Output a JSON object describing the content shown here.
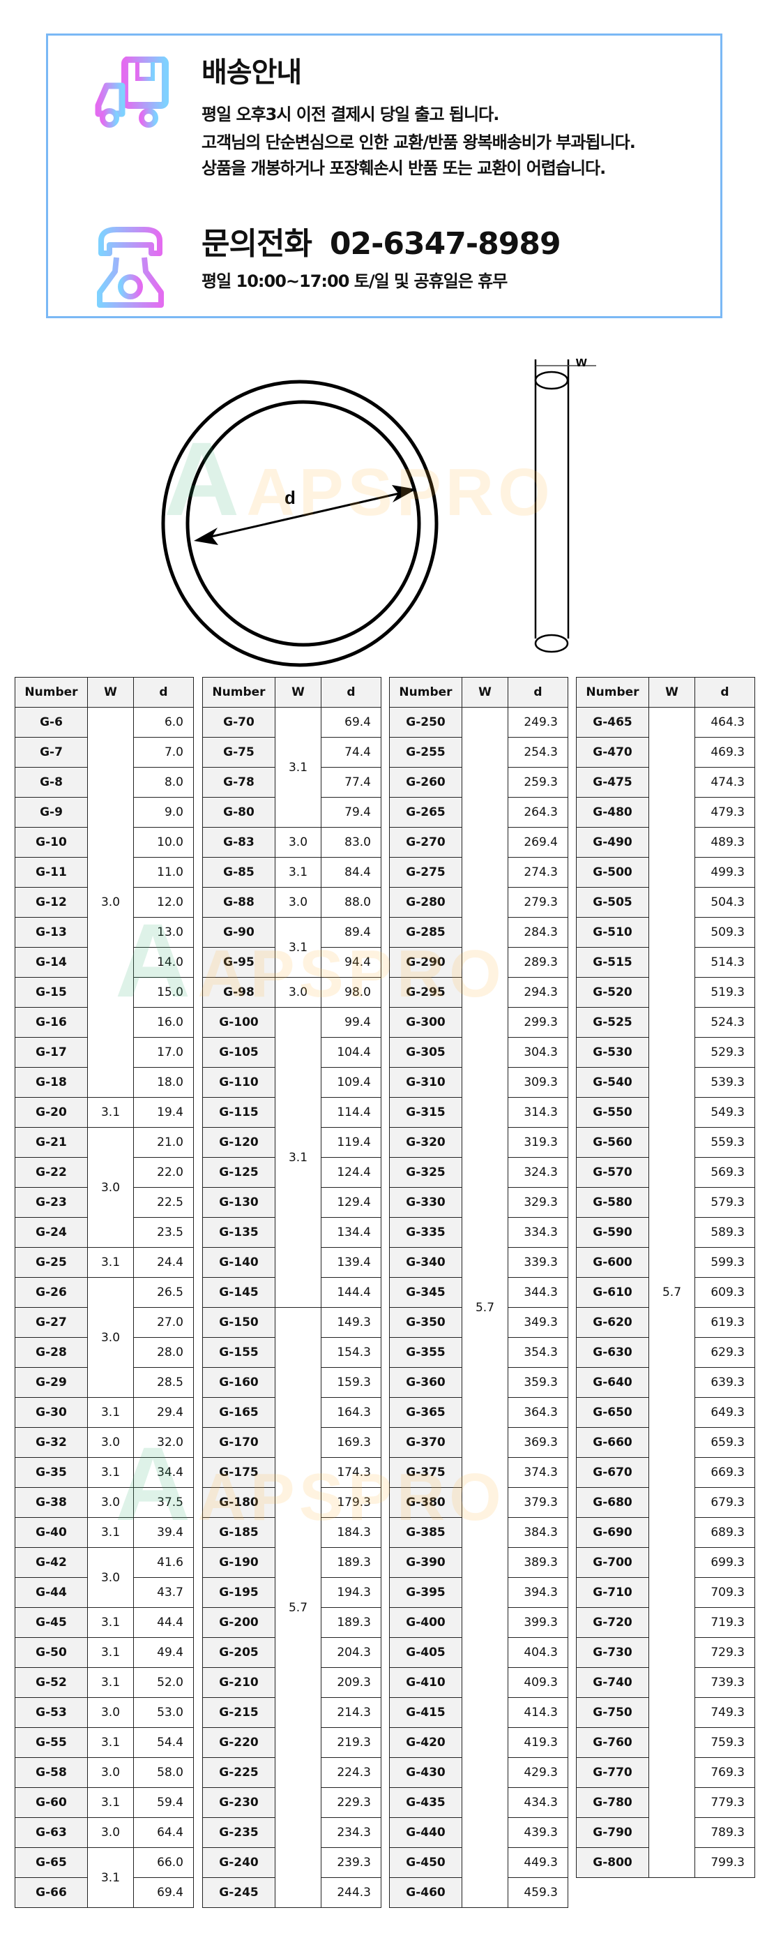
{
  "shipping": {
    "title": "배송안내",
    "lines": [
      "평일 오후3시 이전 결제시 당일 출고 됩니다.",
      "고객님의 단순변심으로 인한 교환/반품 왕복배송비가 부과됩니다.",
      "상품을 개봉하거나 포장훼손시 반품 또는 교환이 어렵습니다."
    ],
    "icon": "delivery-truck-icon"
  },
  "contact": {
    "label": "문의전화",
    "phone": "02-6347-8989",
    "hours": "평일 10:00~17:00 토/일 및 공휴일은 휴무",
    "icon": "telephone-icon"
  },
  "diagram": {
    "d_label": "d",
    "w_label": "w"
  },
  "watermark": "APSPRO",
  "colors": {
    "border": "#7ab8f5",
    "header_bg": "#f2f2f2",
    "gradient_start": "#e36cf0",
    "gradient_end": "#7fd1ff"
  },
  "table_headers": [
    "Number",
    "W",
    "d"
  ],
  "tables": [
    {
      "rows": [
        [
          "G-6",
          "6.0"
        ],
        [
          "G-7",
          "7.0"
        ],
        [
          "G-8",
          "8.0"
        ],
        [
          "G-9",
          "9.0"
        ],
        [
          "G-10",
          "10.0"
        ],
        [
          "G-11",
          "11.0"
        ],
        [
          "G-12",
          "12.0"
        ],
        [
          "G-13",
          "13.0"
        ],
        [
          "G-14",
          "14.0"
        ],
        [
          "G-15",
          "15.0"
        ],
        [
          "G-16",
          "16.0"
        ],
        [
          "G-17",
          "17.0"
        ],
        [
          "G-18",
          "18.0"
        ],
        [
          "G-20",
          "19.4"
        ],
        [
          "G-21",
          "21.0"
        ],
        [
          "G-22",
          "22.0"
        ],
        [
          "G-23",
          "22.5"
        ],
        [
          "G-24",
          "23.5"
        ],
        [
          "G-25",
          "24.4"
        ],
        [
          "G-26",
          "26.5"
        ],
        [
          "G-27",
          "27.0"
        ],
        [
          "G-28",
          "28.0"
        ],
        [
          "G-29",
          "28.5"
        ],
        [
          "G-30",
          "29.4"
        ],
        [
          "G-32",
          "32.0"
        ],
        [
          "G-35",
          "34.4"
        ],
        [
          "G-38",
          "37.5"
        ],
        [
          "G-40",
          "39.4"
        ],
        [
          "G-42",
          "41.6"
        ],
        [
          "G-44",
          "43.7"
        ],
        [
          "G-45",
          "44.4"
        ],
        [
          "G-50",
          "49.4"
        ],
        [
          "G-52",
          "52.0"
        ],
        [
          "G-53",
          "53.0"
        ],
        [
          "G-55",
          "54.4"
        ],
        [
          "G-58",
          "58.0"
        ],
        [
          "G-60",
          "59.4"
        ],
        [
          "G-63",
          "64.4"
        ],
        [
          "G-65",
          "66.0"
        ],
        [
          "G-66",
          "69.4"
        ]
      ],
      "w_groups": [
        [
          "3.0",
          13
        ],
        [
          "3.1",
          1
        ],
        [
          "3.0",
          4
        ],
        [
          "3.1",
          1
        ],
        [
          "3.0",
          4
        ],
        [
          "3.1",
          1
        ],
        [
          "3.0",
          1
        ],
        [
          "3.1",
          1
        ],
        [
          "3.0",
          1
        ],
        [
          "3.1",
          1
        ],
        [
          "3.0",
          2
        ],
        [
          "3.1",
          1
        ],
        [
          "3.1",
          1
        ],
        [
          "3.1",
          1
        ],
        [
          "3.0",
          1
        ],
        [
          "3.1",
          1
        ],
        [
          "3.0",
          1
        ],
        [
          "3.1",
          1
        ],
        [
          "3.0",
          1
        ],
        [
          "3.1",
          2
        ]
      ]
    },
    {
      "rows": [
        [
          "G-70",
          "69.4"
        ],
        [
          "G-75",
          "74.4"
        ],
        [
          "G-78",
          "77.4"
        ],
        [
          "G-80",
          "79.4"
        ],
        [
          "G-83",
          "83.0"
        ],
        [
          "G-85",
          "84.4"
        ],
        [
          "G-88",
          "88.0"
        ],
        [
          "G-90",
          "89.4"
        ],
        [
          "G-95",
          "94.4"
        ],
        [
          "G-98",
          "98.0"
        ],
        [
          "G-100",
          "99.4"
        ],
        [
          "G-105",
          "104.4"
        ],
        [
          "G-110",
          "109.4"
        ],
        [
          "G-115",
          "114.4"
        ],
        [
          "G-120",
          "119.4"
        ],
        [
          "G-125",
          "124.4"
        ],
        [
          "G-130",
          "129.4"
        ],
        [
          "G-135",
          "134.4"
        ],
        [
          "G-140",
          "139.4"
        ],
        [
          "G-145",
          "144.4"
        ],
        [
          "G-150",
          "149.3"
        ],
        [
          "G-155",
          "154.3"
        ],
        [
          "G-160",
          "159.3"
        ],
        [
          "G-165",
          "164.3"
        ],
        [
          "G-170",
          "169.3"
        ],
        [
          "G-175",
          "174.3"
        ],
        [
          "G-180",
          "179.3"
        ],
        [
          "G-185",
          "184.3"
        ],
        [
          "G-190",
          "189.3"
        ],
        [
          "G-195",
          "194.3"
        ],
        [
          "G-200",
          "189.3"
        ],
        [
          "G-205",
          "204.3"
        ],
        [
          "G-210",
          "209.3"
        ],
        [
          "G-215",
          "214.3"
        ],
        [
          "G-220",
          "219.3"
        ],
        [
          "G-225",
          "224.3"
        ],
        [
          "G-230",
          "229.3"
        ],
        [
          "G-235",
          "234.3"
        ],
        [
          "G-240",
          "239.3"
        ],
        [
          "G-245",
          "244.3"
        ]
      ],
      "w_groups": [
        [
          "3.1",
          4
        ],
        [
          "3.0",
          1
        ],
        [
          "3.1",
          1
        ],
        [
          "3.0",
          1
        ],
        [
          "3.1",
          2
        ],
        [
          "3.0",
          1
        ],
        [
          "3.1",
          10
        ],
        [
          "5.7",
          20
        ]
      ]
    },
    {
      "rows": [
        [
          "G-250",
          "249.3"
        ],
        [
          "G-255",
          "254.3"
        ],
        [
          "G-260",
          "259.3"
        ],
        [
          "G-265",
          "264.3"
        ],
        [
          "G-270",
          "269.4"
        ],
        [
          "G-275",
          "274.3"
        ],
        [
          "G-280",
          "279.3"
        ],
        [
          "G-285",
          "284.3"
        ],
        [
          "G-290",
          "289.3"
        ],
        [
          "G-295",
          "294.3"
        ],
        [
          "G-300",
          "299.3"
        ],
        [
          "G-305",
          "304.3"
        ],
        [
          "G-310",
          "309.3"
        ],
        [
          "G-315",
          "314.3"
        ],
        [
          "G-320",
          "319.3"
        ],
        [
          "G-325",
          "324.3"
        ],
        [
          "G-330",
          "329.3"
        ],
        [
          "G-335",
          "334.3"
        ],
        [
          "G-340",
          "339.3"
        ],
        [
          "G-345",
          "344.3"
        ],
        [
          "G-350",
          "349.3"
        ],
        [
          "G-355",
          "354.3"
        ],
        [
          "G-360",
          "359.3"
        ],
        [
          "G-365",
          "364.3"
        ],
        [
          "G-370",
          "369.3"
        ],
        [
          "G-375",
          "374.3"
        ],
        [
          "G-380",
          "379.3"
        ],
        [
          "G-385",
          "384.3"
        ],
        [
          "G-390",
          "389.3"
        ],
        [
          "G-395",
          "394.3"
        ],
        [
          "G-400",
          "399.3"
        ],
        [
          "G-405",
          "404.3"
        ],
        [
          "G-410",
          "409.3"
        ],
        [
          "G-415",
          "414.3"
        ],
        [
          "G-420",
          "419.3"
        ],
        [
          "G-430",
          "429.3"
        ],
        [
          "G-435",
          "434.3"
        ],
        [
          "G-440",
          "439.3"
        ],
        [
          "G-450",
          "449.3"
        ],
        [
          "G-460",
          "459.3"
        ]
      ],
      "w_groups": [
        [
          "5.7",
          40
        ]
      ]
    },
    {
      "rows": [
        [
          "G-465",
          "464.3"
        ],
        [
          "G-470",
          "469.3"
        ],
        [
          "G-475",
          "474.3"
        ],
        [
          "G-480",
          "479.3"
        ],
        [
          "G-490",
          "489.3"
        ],
        [
          "G-500",
          "499.3"
        ],
        [
          "G-505",
          "504.3"
        ],
        [
          "G-510",
          "509.3"
        ],
        [
          "G-515",
          "514.3"
        ],
        [
          "G-520",
          "519.3"
        ],
        [
          "G-525",
          "524.3"
        ],
        [
          "G-530",
          "529.3"
        ],
        [
          "G-540",
          "539.3"
        ],
        [
          "G-550",
          "549.3"
        ],
        [
          "G-560",
          "559.3"
        ],
        [
          "G-570",
          "569.3"
        ],
        [
          "G-580",
          "579.3"
        ],
        [
          "G-590",
          "589.3"
        ],
        [
          "G-600",
          "599.3"
        ],
        [
          "G-610",
          "609.3"
        ],
        [
          "G-620",
          "619.3"
        ],
        [
          "G-630",
          "629.3"
        ],
        [
          "G-640",
          "639.3"
        ],
        [
          "G-650",
          "649.3"
        ],
        [
          "G-660",
          "659.3"
        ],
        [
          "G-670",
          "669.3"
        ],
        [
          "G-680",
          "679.3"
        ],
        [
          "G-690",
          "689.3"
        ],
        [
          "G-700",
          "699.3"
        ],
        [
          "G-710",
          "709.3"
        ],
        [
          "G-720",
          "719.3"
        ],
        [
          "G-730",
          "729.3"
        ],
        [
          "G-740",
          "739.3"
        ],
        [
          "G-750",
          "749.3"
        ],
        [
          "G-760",
          "759.3"
        ],
        [
          "G-770",
          "769.3"
        ],
        [
          "G-780",
          "779.3"
        ],
        [
          "G-790",
          "789.3"
        ],
        [
          "G-800",
          "799.3"
        ]
      ],
      "w_groups": [
        [
          "5.7",
          39
        ]
      ]
    }
  ]
}
